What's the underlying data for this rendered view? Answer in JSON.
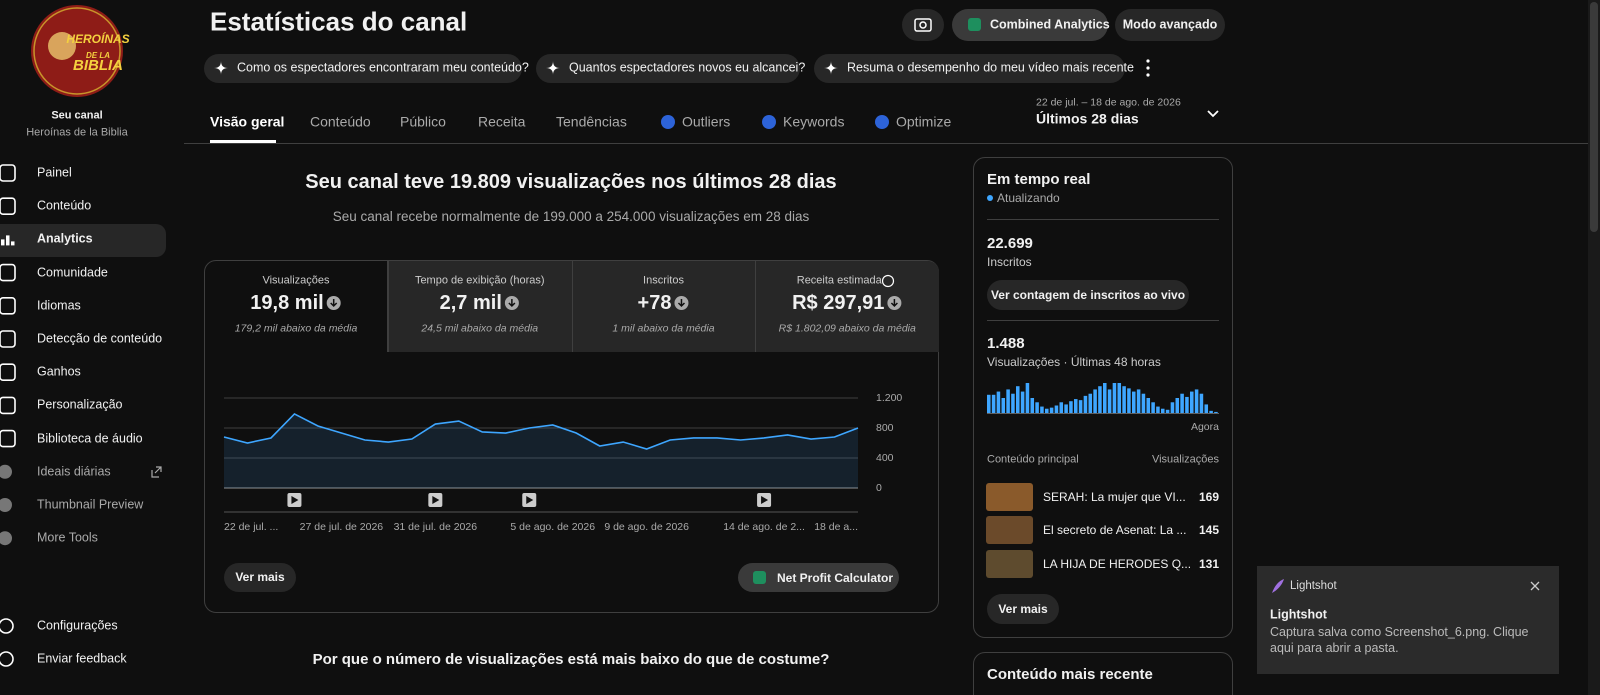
{
  "sidebar": {
    "logo_text": [
      "HEROÍNAS",
      "DE LA",
      "BIBLIA"
    ],
    "channel_label": "Seu canal",
    "channel_name": "Heroínas de la Biblia",
    "items": [
      "Painel",
      "Conteúdo",
      "Analytics",
      "Comunidade",
      "Idiomas",
      "Detecção de conteúdo",
      "Ganhos",
      "Personalização",
      "Biblioteca de áudio",
      "Ideais diárias",
      "Thumbnail Preview",
      "More Tools"
    ],
    "bottom_items": [
      "Configurações",
      "Enviar feedback"
    ]
  },
  "header": {
    "title": "Estatísticas do canal",
    "buttons": [
      "Combined Analytics",
      "Modo avançado"
    ],
    "chips": [
      "Como os espectadores encontraram meu conteúdo?",
      "Quantos espectadores novos eu alcancei?",
      "Resuma o desempenho do meu vídeo mais recente"
    ],
    "tabs": [
      "Visão geral",
      "Conteúdo",
      "Público",
      "Receita",
      "Tendências",
      "Outliers",
      "Keywords",
      "Optimize"
    ],
    "date_range": "22 de jul. – 18 de ago. de 2026",
    "period": "Últimos 28 dias"
  },
  "overview": {
    "headline": "Seu canal teve 19.809 visualizações nos últimos 28 dias",
    "subhead": "Seu canal recebe normalmente de 199.000 a 254.000 visualizações em 28 dias",
    "metrics": [
      {
        "label": "Visualizações",
        "value": "19,8 mil",
        "note": "179,2 mil abaixo da média"
      },
      {
        "label": "Tempo de exibição (horas)",
        "value": "2,7 mil",
        "note": "24,5 mil abaixo da média"
      },
      {
        "label": "Inscritos",
        "value": "+78",
        "note": "1 mil abaixo da média"
      },
      {
        "label": "Receita estimada",
        "value": "R$ 297,91",
        "note": "R$ 1.802,09 abaixo da média"
      }
    ],
    "more_button": "Ver mais",
    "calculator_button": "Net Profit Calculator",
    "next_heading": "Por que o número de visualizações está mais baixo do que de costume?"
  },
  "chart_data": [
    {
      "type": "line",
      "categories": [
        "22 de jul. ...",
        null,
        null,
        null,
        null,
        "27 de jul. de 2026",
        null,
        null,
        null,
        "31 de jul. de 2026",
        null,
        null,
        null,
        null,
        "5 de ago. de 2026",
        null,
        null,
        null,
        "9 de ago. de 2026",
        null,
        null,
        null,
        null,
        "14 de ago. de 2...",
        null,
        null,
        null,
        "18 de a..."
      ],
      "values": [
        680,
        600,
        667,
        987,
        827,
        733,
        640,
        613,
        653,
        853,
        893,
        747,
        733,
        800,
        840,
        733,
        560,
        613,
        520,
        640,
        667,
        667,
        640,
        667,
        707,
        653,
        680,
        800
      ],
      "color": "#3ea6ff",
      "ylim": [
        0,
        1200
      ],
      "yticks": [
        0,
        400,
        800,
        {
          "value": 1200,
          "label": "1.200"
        }
      ],
      "grid": true
    },
    {
      "type": "bar",
      "values": [
        34,
        34,
        40,
        28,
        44,
        36,
        50,
        40,
        56,
        28,
        20,
        12,
        8,
        10,
        14,
        20,
        16,
        22,
        26,
        24,
        32,
        36,
        44,
        50,
        56,
        44,
        56,
        56,
        50,
        46,
        40,
        44,
        36,
        28,
        20,
        12,
        8,
        6,
        20,
        28,
        36,
        30,
        40,
        44,
        36,
        16,
        4,
        2
      ],
      "color": "#3ea6ff",
      "end_label": "Agora"
    }
  ],
  "realtime": {
    "title": "Em tempo real",
    "status": "Atualizando",
    "subscribers": "22.699",
    "subscribers_label": "Inscritos",
    "live_button": "Ver contagem de inscritos ao vivo",
    "views": "1.488",
    "views_label": "Visualizações · Últimas 48 horas",
    "top_header": "Conteúdo principal",
    "top_views_header": "Visualizações",
    "top_content": [
      {
        "title": "SERAH: La mujer que VI...",
        "views": 169
      },
      {
        "title": "El secreto de Asenat: La ...",
        "views": 145
      },
      {
        "title": "LA HIJA DE HERODES Q...",
        "views": 131
      }
    ],
    "more_button": "Ver mais",
    "next_title": "Conteúdo mais recente"
  },
  "toast": {
    "app": "Lightshot",
    "title": "Lightshot",
    "body": "Captura salva como Screenshot_6.png. Clique aqui para abrir a pasta."
  }
}
